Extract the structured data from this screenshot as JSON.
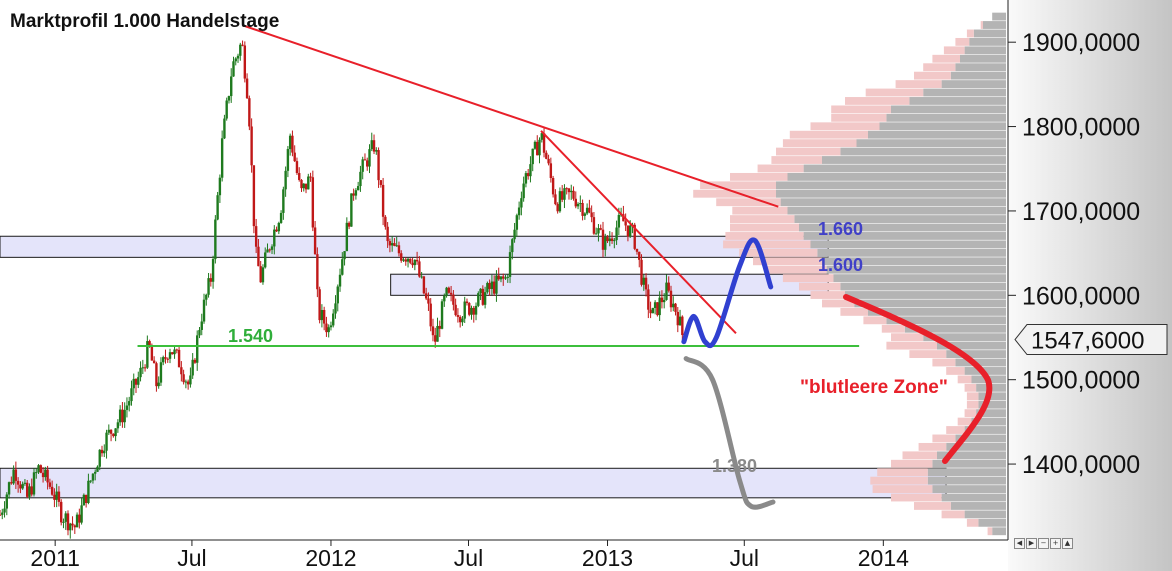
{
  "chart_data": {
    "type": "candlestick",
    "title": "Marktprofil 1.000 Handelstage",
    "x_range": [
      "2010-10-20",
      "2014-06-15"
    ],
    "y_range": [
      1310,
      1950
    ],
    "y_ticks": [
      {
        "value": 1900,
        "label": "1900,0000"
      },
      {
        "value": 1800,
        "label": "1800,0000"
      },
      {
        "value": 1700,
        "label": "1700,0000"
      },
      {
        "value": 1600,
        "label": "1600,0000"
      },
      {
        "value": 1500,
        "label": "1500,0000"
      },
      {
        "value": 1400,
        "label": "1400,0000"
      }
    ],
    "x_ticks": [
      {
        "date": "2011-01-01",
        "label": "2011"
      },
      {
        "date": "2011-07-01",
        "label": "Jul"
      },
      {
        "date": "2012-01-01",
        "label": "2012"
      },
      {
        "date": "2012-07-01",
        "label": "Jul"
      },
      {
        "date": "2013-01-01",
        "label": "2013"
      },
      {
        "date": "2013-07-01",
        "label": "Jul"
      },
      {
        "date": "2014-01-01",
        "label": "2014"
      }
    ],
    "current_price": {
      "value": 1547.6,
      "label": "1547,6000"
    },
    "price_path": [
      {
        "date": "2010-10-20",
        "value": 1340
      },
      {
        "date": "2010-11-08",
        "value": 1395
      },
      {
        "date": "2010-11-25",
        "value": 1360
      },
      {
        "date": "2010-12-10",
        "value": 1395
      },
      {
        "date": "2010-12-28",
        "value": 1370
      },
      {
        "date": "2011-01-10",
        "value": 1340
      },
      {
        "date": "2011-01-28",
        "value": 1325
      },
      {
        "date": "2011-02-15",
        "value": 1375
      },
      {
        "date": "2011-03-05",
        "value": 1425
      },
      {
        "date": "2011-04-01",
        "value": 1460
      },
      {
        "date": "2011-04-25",
        "value": 1510
      },
      {
        "date": "2011-05-05",
        "value": 1540
      },
      {
        "date": "2011-05-15",
        "value": 1495
      },
      {
        "date": "2011-06-01",
        "value": 1540
      },
      {
        "date": "2011-06-15",
        "value": 1520
      },
      {
        "date": "2011-06-28",
        "value": 1490
      },
      {
        "date": "2011-07-12",
        "value": 1570
      },
      {
        "date": "2011-07-26",
        "value": 1620
      },
      {
        "date": "2011-08-10",
        "value": 1780
      },
      {
        "date": "2011-08-23",
        "value": 1870
      },
      {
        "date": "2011-09-05",
        "value": 1900
      },
      {
        "date": "2011-09-14",
        "value": 1830
      },
      {
        "date": "2011-09-23",
        "value": 1650
      },
      {
        "date": "2011-09-30",
        "value": 1620
      },
      {
        "date": "2011-10-12",
        "value": 1660
      },
      {
        "date": "2011-10-26",
        "value": 1700
      },
      {
        "date": "2011-11-08",
        "value": 1790
      },
      {
        "date": "2011-11-22",
        "value": 1720
      },
      {
        "date": "2011-12-05",
        "value": 1740
      },
      {
        "date": "2011-12-15",
        "value": 1580
      },
      {
        "date": "2011-12-29",
        "value": 1560
      },
      {
        "date": "2012-01-15",
        "value": 1640
      },
      {
        "date": "2012-02-01",
        "value": 1730
      },
      {
        "date": "2012-02-28",
        "value": 1780
      },
      {
        "date": "2012-03-15",
        "value": 1660
      },
      {
        "date": "2012-04-01",
        "value": 1650
      },
      {
        "date": "2012-04-20",
        "value": 1645
      },
      {
        "date": "2012-05-10",
        "value": 1580
      },
      {
        "date": "2012-05-16",
        "value": 1540
      },
      {
        "date": "2012-06-01",
        "value": 1600
      },
      {
        "date": "2012-06-20",
        "value": 1580
      },
      {
        "date": "2012-07-10",
        "value": 1590
      },
      {
        "date": "2012-08-01",
        "value": 1610
      },
      {
        "date": "2012-08-20",
        "value": 1620
      },
      {
        "date": "2012-09-10",
        "value": 1730
      },
      {
        "date": "2012-10-01",
        "value": 1780
      },
      {
        "date": "2012-10-05",
        "value": 1790
      },
      {
        "date": "2012-10-25",
        "value": 1710
      },
      {
        "date": "2012-11-15",
        "value": 1720
      },
      {
        "date": "2012-12-05",
        "value": 1700
      },
      {
        "date": "2012-12-28",
        "value": 1660
      },
      {
        "date": "2013-01-20",
        "value": 1690
      },
      {
        "date": "2013-02-05",
        "value": 1670
      },
      {
        "date": "2013-02-20",
        "value": 1600
      },
      {
        "date": "2013-03-01",
        "value": 1575
      },
      {
        "date": "2013-03-20",
        "value": 1605
      },
      {
        "date": "2013-04-03",
        "value": 1580
      },
      {
        "date": "2013-04-11",
        "value": 1550
      }
    ],
    "support_line": {
      "start": "2011-04-20",
      "end": "2013-11-30",
      "value": 1540
    },
    "trendlines": [
      {
        "start": "2011-09-06",
        "start_value": 1920,
        "end": "2013-08-15",
        "end_value": 1705
      },
      {
        "start": "2012-10-05",
        "start_value": 1795,
        "end": "2013-06-20",
        "end_value": 1555
      }
    ],
    "zones": [
      {
        "from": 1645,
        "to": 1670,
        "start": "2010-10-20",
        "end": "2013-10-20"
      },
      {
        "from": 1600,
        "to": 1625,
        "start": "2012-03-20",
        "end": "2013-10-20"
      },
      {
        "from": 1360,
        "to": 1395,
        "start": "2010-10-20",
        "end": "2014-03-25"
      }
    ],
    "annotations": [
      {
        "text": "1.540",
        "color": "#2fae3a"
      },
      {
        "text": "1.660",
        "color": "#4040c8"
      },
      {
        "text": "1.600",
        "color": "#4040c8"
      },
      {
        "text": "1.380",
        "color": "#8a8a8a"
      },
      {
        "text": "\"blutleere Zone\"",
        "color": "#e8202a"
      }
    ],
    "scenario_up": [
      {
        "date": "2013-04-12",
        "value": 1545
      },
      {
        "date": "2013-04-25",
        "value": 1575
      },
      {
        "date": "2013-05-10",
        "value": 1545
      },
      {
        "date": "2013-05-25",
        "value": 1550
      },
      {
        "date": "2013-06-25",
        "value": 1635
      },
      {
        "date": "2013-07-15",
        "value": 1665
      },
      {
        "date": "2013-08-05",
        "value": 1610
      }
    ],
    "scenario_down": [
      {
        "date": "2013-04-15",
        "value": 1525
      },
      {
        "date": "2013-05-20",
        "value": 1500
      },
      {
        "date": "2013-06-25",
        "value": 1380
      },
      {
        "date": "2013-07-10",
        "value": 1350
      },
      {
        "date": "2013-08-08",
        "value": 1355
      }
    ],
    "market_profile": {
      "bins": [
        {
          "price": 1930,
          "red": 0,
          "gray": 0.06
        },
        {
          "price": 1920,
          "red": 0.01,
          "gray": 0.1
        },
        {
          "price": 1910,
          "red": 0.03,
          "gray": 0.14
        },
        {
          "price": 1900,
          "red": 0.06,
          "gray": 0.16
        },
        {
          "price": 1890,
          "red": 0.09,
          "gray": 0.18
        },
        {
          "price": 1880,
          "red": 0.12,
          "gray": 0.2
        },
        {
          "price": 1870,
          "red": 0.14,
          "gray": 0.22
        },
        {
          "price": 1860,
          "red": 0.16,
          "gray": 0.24
        },
        {
          "price": 1850,
          "red": 0.2,
          "gray": 0.28
        },
        {
          "price": 1840,
          "red": 0.25,
          "gray": 0.36
        },
        {
          "price": 1830,
          "red": 0.28,
          "gray": 0.42
        },
        {
          "price": 1820,
          "red": 0.26,
          "gray": 0.5
        },
        {
          "price": 1810,
          "red": 0.24,
          "gray": 0.52
        },
        {
          "price": 1800,
          "red": 0.3,
          "gray": 0.55
        },
        {
          "price": 1790,
          "red": 0.34,
          "gray": 0.6
        },
        {
          "price": 1780,
          "red": 0.32,
          "gray": 0.65
        },
        {
          "price": 1770,
          "red": 0.28,
          "gray": 0.72
        },
        {
          "price": 1760,
          "red": 0.22,
          "gray": 0.8
        },
        {
          "price": 1750,
          "red": 0.2,
          "gray": 0.88
        },
        {
          "price": 1740,
          "red": 0.25,
          "gray": 0.95
        },
        {
          "price": 1730,
          "red": 0.33,
          "gray": 1.0
        },
        {
          "price": 1720,
          "red": 0.36,
          "gray": 1.0
        },
        {
          "price": 1710,
          "red": 0.28,
          "gray": 0.98
        },
        {
          "price": 1700,
          "red": 0.24,
          "gray": 0.95
        },
        {
          "price": 1690,
          "red": 0.28,
          "gray": 0.92
        },
        {
          "price": 1680,
          "red": 0.3,
          "gray": 0.9
        },
        {
          "price": 1670,
          "red": 0.34,
          "gray": 0.88
        },
        {
          "price": 1660,
          "red": 0.38,
          "gray": 0.85
        },
        {
          "price": 1650,
          "red": 0.34,
          "gray": 0.82
        },
        {
          "price": 1640,
          "red": 0.3,
          "gray": 0.8
        },
        {
          "price": 1630,
          "red": 0.26,
          "gray": 0.78
        },
        {
          "price": 1620,
          "red": 0.22,
          "gray": 0.75
        },
        {
          "price": 1610,
          "red": 0.18,
          "gray": 0.72
        },
        {
          "price": 1600,
          "red": 0.15,
          "gray": 0.7
        },
        {
          "price": 1590,
          "red": 0.14,
          "gray": 0.66
        },
        {
          "price": 1580,
          "red": 0.12,
          "gray": 0.6
        },
        {
          "price": 1570,
          "red": 0.1,
          "gray": 0.52
        },
        {
          "price": 1560,
          "red": 0.1,
          "gray": 0.44
        },
        {
          "price": 1550,
          "red": 0.14,
          "gray": 0.36
        },
        {
          "price": 1540,
          "red": 0.22,
          "gray": 0.3
        },
        {
          "price": 1530,
          "red": 0.16,
          "gray": 0.26
        },
        {
          "price": 1520,
          "red": 0.1,
          "gray": 0.22
        },
        {
          "price": 1510,
          "red": 0.08,
          "gray": 0.18
        },
        {
          "price": 1500,
          "red": 0.06,
          "gray": 0.15
        },
        {
          "price": 1490,
          "red": 0.05,
          "gray": 0.13
        },
        {
          "price": 1480,
          "red": 0.05,
          "gray": 0.12
        },
        {
          "price": 1470,
          "red": 0.05,
          "gray": 0.12
        },
        {
          "price": 1460,
          "red": 0.05,
          "gray": 0.13
        },
        {
          "price": 1450,
          "red": 0.06,
          "gray": 0.15
        },
        {
          "price": 1440,
          "red": 0.08,
          "gray": 0.18
        },
        {
          "price": 1430,
          "red": 0.1,
          "gray": 0.22
        },
        {
          "price": 1420,
          "red": 0.12,
          "gray": 0.26
        },
        {
          "price": 1410,
          "red": 0.15,
          "gray": 0.3
        },
        {
          "price": 1400,
          "red": 0.18,
          "gray": 0.32
        },
        {
          "price": 1390,
          "red": 0.22,
          "gray": 0.34
        },
        {
          "price": 1380,
          "red": 0.25,
          "gray": 0.34
        },
        {
          "price": 1370,
          "red": 0.26,
          "gray": 0.32
        },
        {
          "price": 1360,
          "red": 0.22,
          "gray": 0.28
        },
        {
          "price": 1350,
          "red": 0.16,
          "gray": 0.24
        },
        {
          "price": 1340,
          "red": 0.1,
          "gray": 0.18
        },
        {
          "price": 1330,
          "red": 0.05,
          "gray": 0.12
        },
        {
          "price": 1320,
          "red": 0.02,
          "gray": 0.06
        }
      ]
    },
    "colors": {
      "zone_fill": "#e4e4fa",
      "support": "#3cbf3c",
      "trend": "#e8202a",
      "scenario_up": "#3040d0",
      "scenario_down": "#8a8a8a",
      "zone_arrow": "#e8202a",
      "profile_red": "#f2c8c8",
      "profile_gray": "#b4b4b4",
      "candle_up": "#1e7a1e",
      "candle_down": "#c01818"
    }
  }
}
